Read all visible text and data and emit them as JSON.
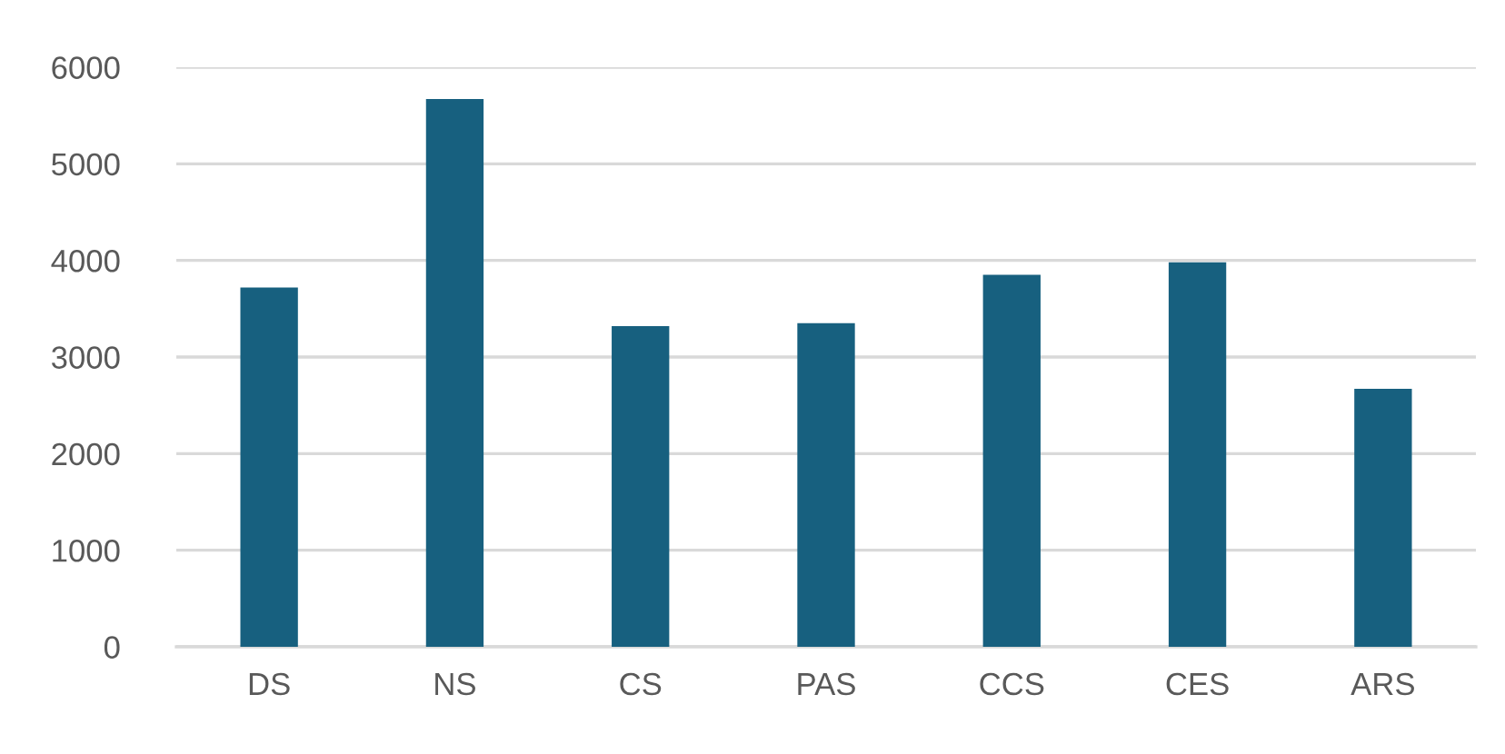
{
  "chart_data": {
    "type": "bar",
    "categories": [
      "DS",
      "NS",
      "CS",
      "PAS",
      "CCS",
      "CES",
      "ARS"
    ],
    "values": [
      3720,
      5670,
      3320,
      3350,
      3850,
      3980,
      2670
    ],
    "color": "#17607f",
    "ylim": [
      0,
      6000
    ],
    "yticks": [
      0,
      1000,
      2000,
      3000,
      4000,
      5000,
      6000
    ],
    "grid": "y"
  }
}
